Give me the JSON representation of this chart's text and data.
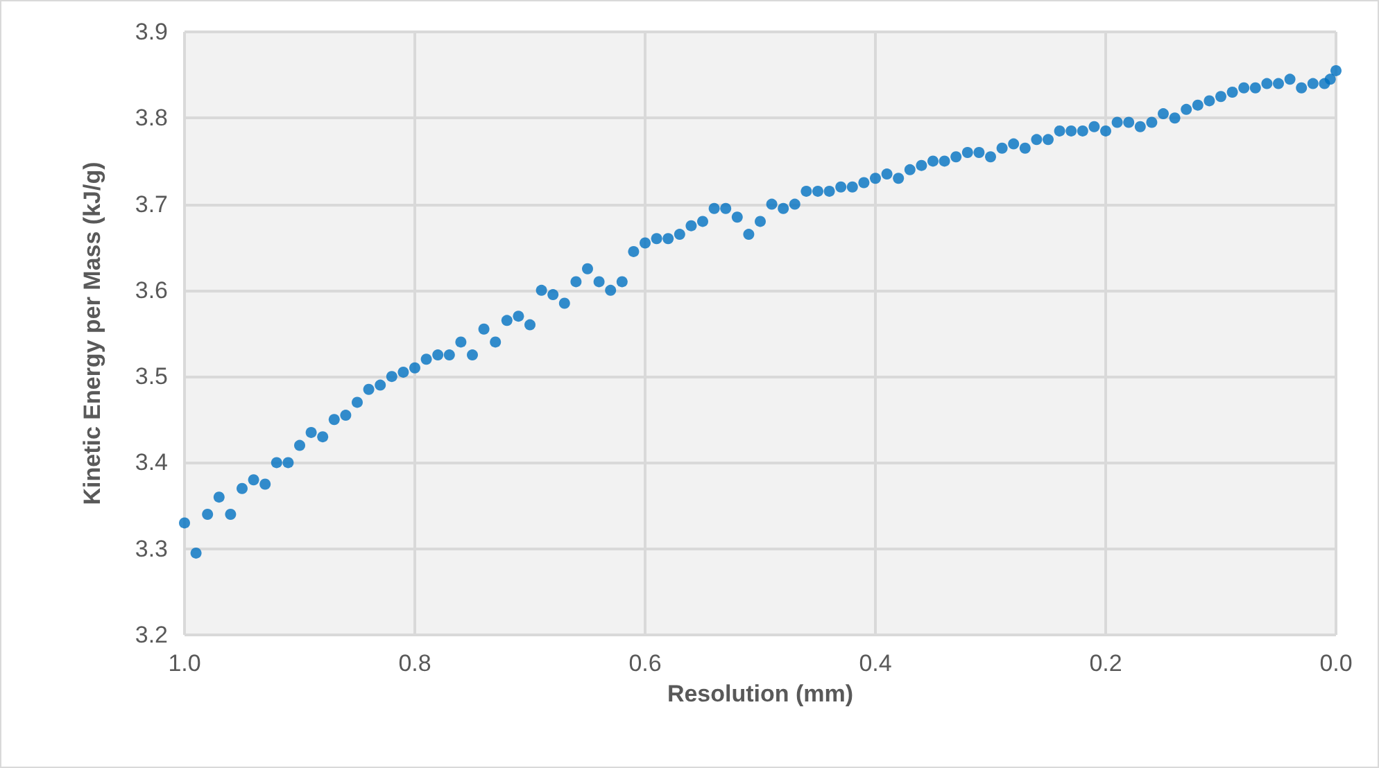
{
  "chart_data": {
    "type": "scatter",
    "xlabel": "Resolution (mm)",
    "ylabel": "Kinetic Energy per Mass (kJ/g)",
    "xlim": [
      1.0,
      0.0
    ],
    "xticks": [
      {
        "value": 1.0,
        "label": "1.0"
      },
      0.8,
      0.6,
      0.4,
      0.2,
      {
        "value": 0.0,
        "label": "0.0"
      }
    ],
    "ylim": [
      3.2,
      3.9
    ],
    "yticks": [
      3.2,
      3.3,
      3.4,
      3.5,
      3.6,
      3.7,
      3.8,
      3.9
    ],
    "grid": true,
    "marker": "circle",
    "series": [
      {
        "color": "#0070c0",
        "x": [
          1.0,
          0.99,
          0.98,
          0.97,
          0.96,
          0.95,
          0.94,
          0.93,
          0.92,
          0.91,
          0.9,
          0.89,
          0.88,
          0.87,
          0.86,
          0.85,
          0.84,
          0.83,
          0.82,
          0.81,
          0.8,
          0.79,
          0.78,
          0.77,
          0.76,
          0.75,
          0.74,
          0.73,
          0.72,
          0.71,
          0.7,
          0.69,
          0.68,
          0.67,
          0.66,
          0.65,
          0.64,
          0.63,
          0.62,
          0.61,
          0.6,
          0.59,
          0.58,
          0.57,
          0.56,
          0.55,
          0.54,
          0.53,
          0.52,
          0.51,
          0.5,
          0.49,
          0.48,
          0.47,
          0.46,
          0.45,
          0.44,
          0.43,
          0.42,
          0.41,
          0.4,
          0.39,
          0.38,
          0.37,
          0.36,
          0.35,
          0.34,
          0.33,
          0.32,
          0.31,
          0.3,
          0.29,
          0.28,
          0.27,
          0.26,
          0.25,
          0.24,
          0.23,
          0.22,
          0.21,
          0.2,
          0.19,
          0.18,
          0.17,
          0.16,
          0.15,
          0.14,
          0.13,
          0.12,
          0.11,
          0.1,
          0.09,
          0.08,
          0.07,
          0.06,
          0.05,
          0.04,
          0.03,
          0.02,
          0.01,
          0.005,
          0.0
        ],
        "values": [
          3.33,
          3.295,
          3.34,
          3.36,
          3.34,
          3.37,
          3.38,
          3.375,
          3.4,
          3.4,
          3.42,
          3.435,
          3.43,
          3.45,
          3.455,
          3.47,
          3.485,
          3.49,
          3.5,
          3.505,
          3.51,
          3.52,
          3.525,
          3.525,
          3.54,
          3.525,
          3.555,
          3.54,
          3.565,
          3.57,
          3.56,
          3.6,
          3.595,
          3.585,
          3.61,
          3.625,
          3.61,
          3.6,
          3.61,
          3.645,
          3.655,
          3.66,
          3.66,
          3.665,
          3.675,
          3.68,
          3.695,
          3.695,
          3.685,
          3.665,
          3.68,
          3.7,
          3.695,
          3.7,
          3.715,
          3.715,
          3.715,
          3.72,
          3.72,
          3.725,
          3.73,
          3.735,
          3.73,
          3.74,
          3.745,
          3.75,
          3.75,
          3.755,
          3.76,
          3.76,
          3.755,
          3.765,
          3.77,
          3.765,
          3.775,
          3.775,
          3.785,
          3.785,
          3.785,
          3.79,
          3.785,
          3.795,
          3.795,
          3.79,
          3.795,
          3.805,
          3.8,
          3.81,
          3.815,
          3.82,
          3.825,
          3.83,
          3.835,
          3.835,
          3.84,
          3.84,
          3.845,
          3.835,
          3.84,
          3.84,
          3.845,
          3.855
        ]
      }
    ]
  }
}
